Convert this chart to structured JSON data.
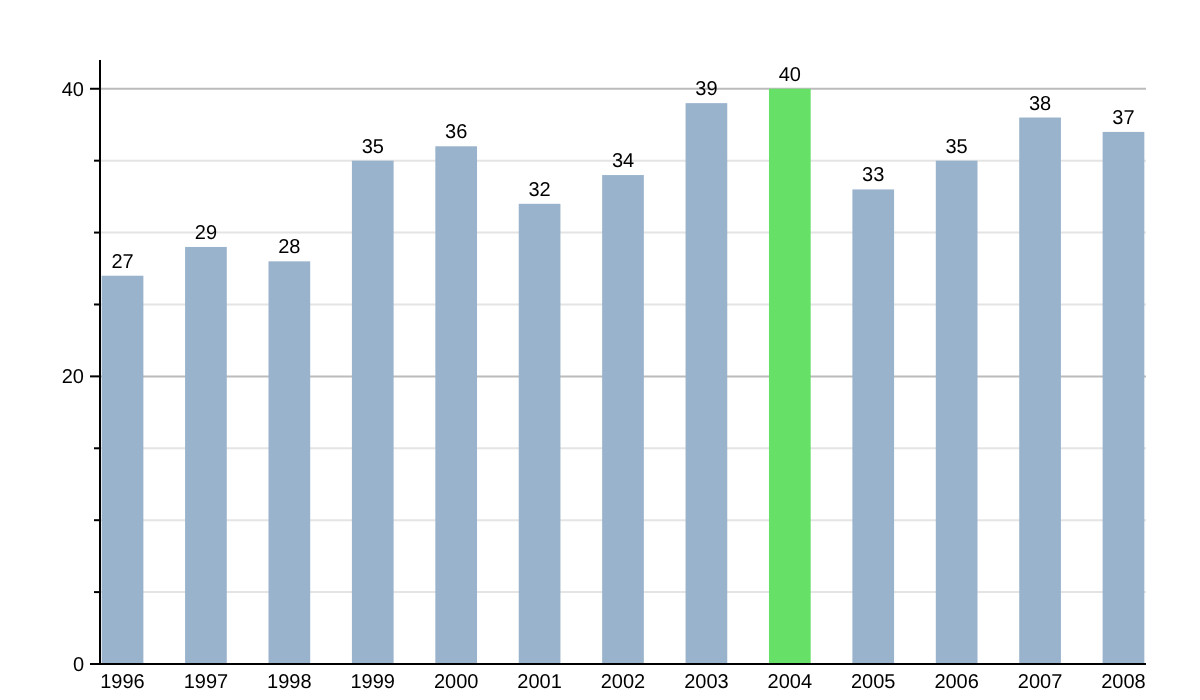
{
  "chart_data": {
    "type": "bar",
    "categories": [
      "1996",
      "1997",
      "1998",
      "1999",
      "2000",
      "2001",
      "2002",
      "2003",
      "2004",
      "2005",
      "2006",
      "2007",
      "2008"
    ],
    "values": [
      27,
      29,
      28,
      35,
      36,
      32,
      34,
      39,
      40,
      33,
      35,
      38,
      37
    ],
    "colors": [
      "#9ab3cc",
      "#9ab3cc",
      "#9ab3cc",
      "#9ab3cc",
      "#9ab3cc",
      "#9ab3cc",
      "#9ab3cc",
      "#9ab3cc",
      "#66e066",
      "#9ab3cc",
      "#9ab3cc",
      "#9ab3cc",
      "#9ab3cc"
    ],
    "ylim": [
      0,
      42
    ],
    "yticks": [
      0,
      {
        "value": 5,
        "label": null
      },
      {
        "value": 10,
        "label": null
      },
      {
        "value": 15,
        "label": null
      },
      20,
      {
        "value": 25,
        "label": null
      },
      {
        "value": 30,
        "label": null
      },
      {
        "value": 35,
        "label": null
      },
      40
    ],
    "grid": "y",
    "data_labels": true
  }
}
